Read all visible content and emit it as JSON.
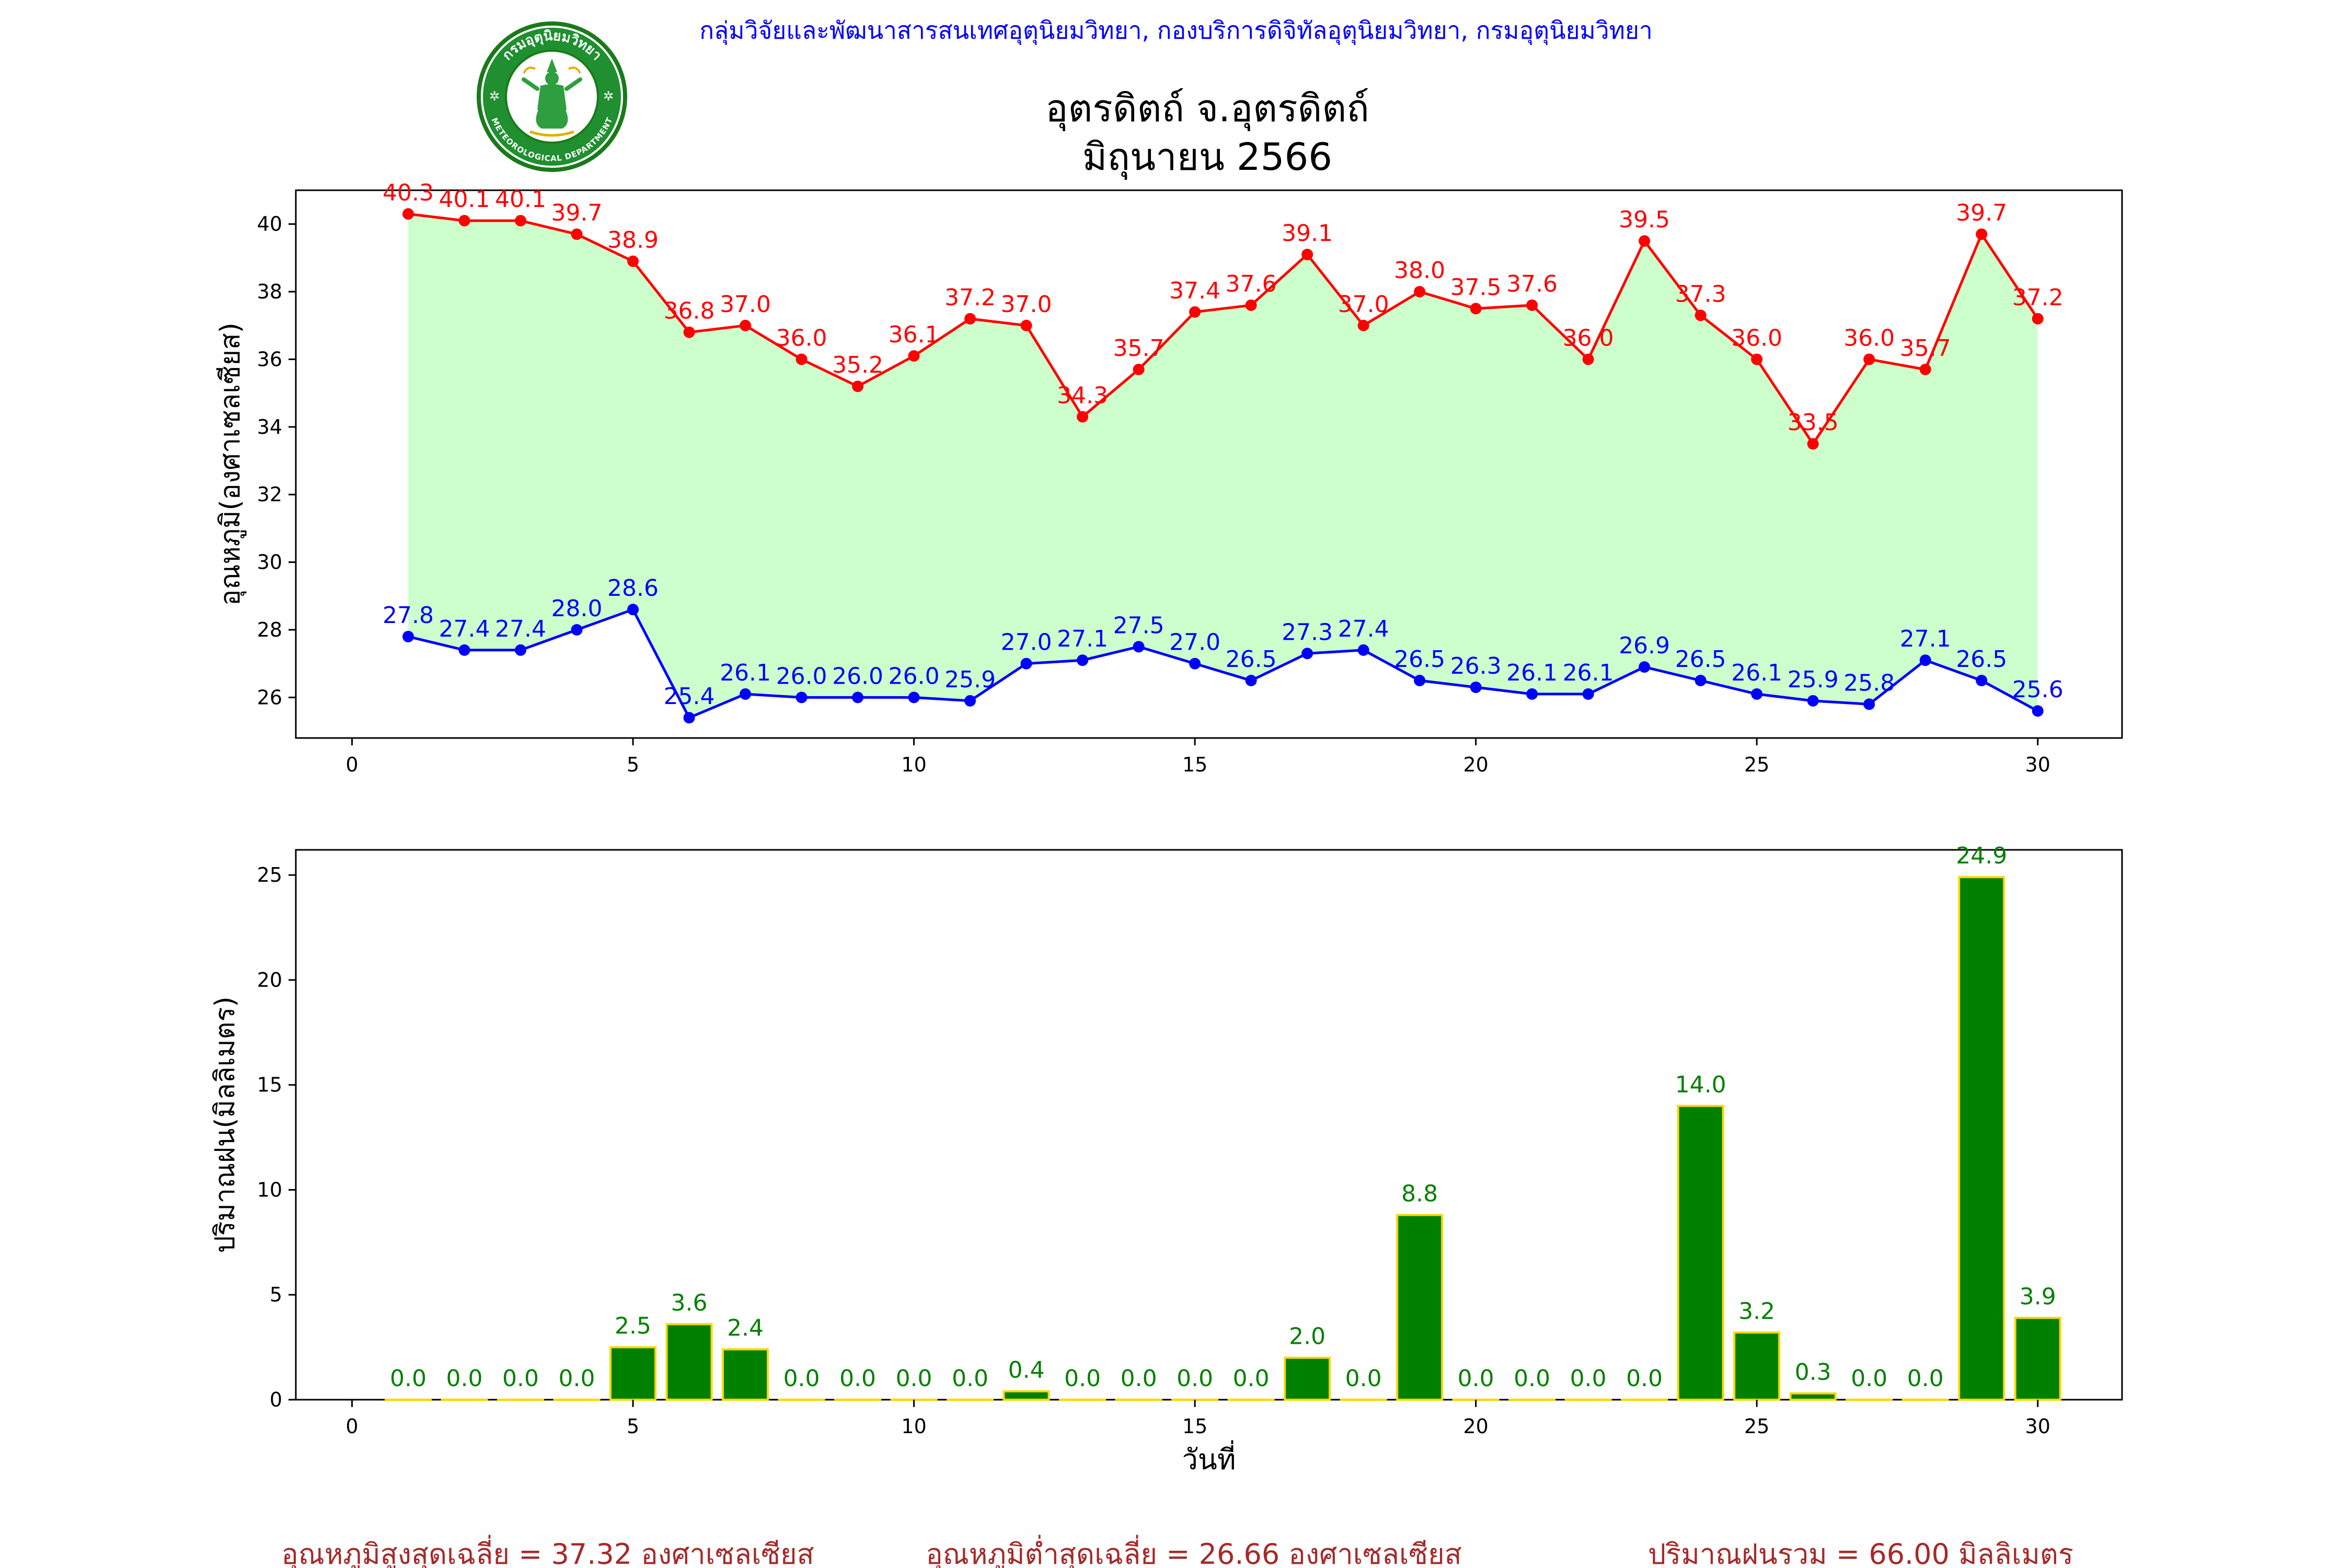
{
  "header": {
    "agency": "กลุ่มวิจัยและพัฒนาสารสนเทศอุตุนิยมวิทยา, กองบริการดิจิทัลอุตุนิยมวิทยา, กรมอุตุนิยมวิทยา",
    "title_line1": "อุตรดิตถ์ จ.อุตรดิตถ์",
    "title_line2": "มิถุนายน 2566",
    "logo_text_top": "กรมอุตุนิยมวิทยา",
    "logo_text_bottom": "METEOROLOGICAL DEPARTMENT"
  },
  "colors": {
    "max_line": "#ff0000",
    "min_line": "#0000ff",
    "fill": "#ccffcc",
    "bar_fill": "#008000",
    "bar_edge": "#ffd700",
    "bar_label": "#008000",
    "agency_text": "#0000ff",
    "summary_text": "#a52a2a"
  },
  "chart_data": [
    {
      "type": "line",
      "ylabel": "อุณหภูมิ(องศาเซลเซียส)",
      "xlabel": "",
      "xlim": [
        -1,
        31.5
      ],
      "ylim": [
        24.8,
        41.0
      ],
      "xticks": [
        0,
        5,
        10,
        15,
        20,
        25,
        30
      ],
      "yticks": [
        26,
        28,
        30,
        32,
        34,
        36,
        38,
        40
      ],
      "grid": false,
      "fill_between": true,
      "x": [
        1,
        2,
        3,
        4,
        5,
        6,
        7,
        8,
        9,
        10,
        11,
        12,
        13,
        14,
        15,
        16,
        17,
        18,
        19,
        20,
        21,
        22,
        23,
        24,
        25,
        26,
        27,
        28,
        29,
        30
      ],
      "series": [
        {
          "key": "max",
          "values": [
            40.3,
            40.1,
            40.1,
            39.7,
            38.9,
            36.8,
            37.0,
            36.0,
            35.2,
            36.1,
            37.2,
            37.0,
            34.3,
            35.7,
            37.4,
            37.6,
            39.1,
            37.0,
            38.0,
            37.5,
            37.6,
            36.0,
            39.5,
            37.3,
            36.0,
            33.5,
            36.0,
            35.7,
            39.7,
            37.2
          ]
        },
        {
          "key": "min",
          "values": [
            27.8,
            27.4,
            27.4,
            28.0,
            28.6,
            25.4,
            26.1,
            26.0,
            26.0,
            26.0,
            25.9,
            27.0,
            27.1,
            27.5,
            27.0,
            26.5,
            27.3,
            27.4,
            26.5,
            26.3,
            26.1,
            26.1,
            26.9,
            26.5,
            26.1,
            25.9,
            25.8,
            27.1,
            26.5,
            25.6
          ]
        }
      ]
    },
    {
      "type": "bar",
      "ylabel": "ปริมาณฝน(มิลลิเมตร)",
      "xlabel": "วันที่",
      "xlim": [
        -1,
        31.5
      ],
      "ylim": [
        0,
        26.2
      ],
      "xticks": [
        0,
        5,
        10,
        15,
        20,
        25,
        30
      ],
      "yticks": [
        0,
        5,
        10,
        15,
        20,
        25
      ],
      "grid": false,
      "x": [
        1,
        2,
        3,
        4,
        5,
        6,
        7,
        8,
        9,
        10,
        11,
        12,
        13,
        14,
        15,
        16,
        17,
        18,
        19,
        20,
        21,
        22,
        23,
        24,
        25,
        26,
        27,
        28,
        29,
        30
      ],
      "values": [
        0.0,
        0.0,
        0.0,
        0.0,
        2.5,
        3.6,
        2.4,
        0.0,
        0.0,
        0.0,
        0.0,
        0.4,
        0.0,
        0.0,
        0.0,
        0.0,
        2.0,
        0.0,
        8.8,
        0.0,
        0.0,
        0.0,
        0.0,
        14.0,
        3.2,
        0.3,
        0.0,
        0.0,
        24.9,
        3.9
      ]
    }
  ],
  "summary": {
    "avg_max": "อุณหภูมิสูงสุดเฉลี่ย = 37.32 องศาเซลเซียส",
    "avg_min": "อุณหภูมิต่ำสุดเฉลี่ย = 26.66 องศาเซลเซียส",
    "total_rain": "ปริมาณฝนรวม = 66.00 มิลลิเมตร"
  }
}
